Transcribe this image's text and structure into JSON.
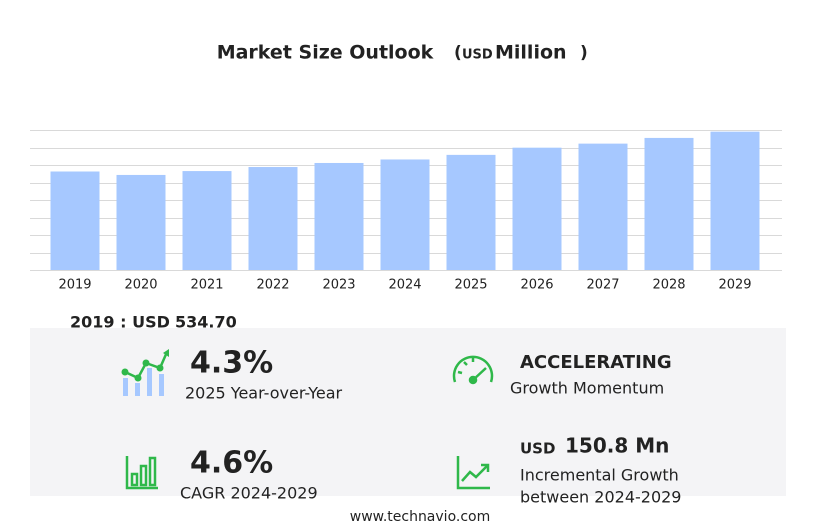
{
  "chart_data": {
    "type": "bar",
    "title": "Market Size Outlook",
    "unit": {
      "open": "(",
      "currency": "USD",
      "scale": "Million",
      "close": ")"
    },
    "categories": [
      "2019",
      "2020",
      "2021",
      "2022",
      "2023",
      "2024",
      "2025",
      "2026",
      "2027",
      "2028",
      "2029"
    ],
    "values": [
      534.7,
      516,
      537,
      559,
      581,
      600,
      625,
      664,
      686,
      717,
      751
    ],
    "color": "#a6c8ff",
    "ylim": [
      0,
      760
    ],
    "yticks": [
      0,
      95,
      190,
      285,
      380,
      475,
      570,
      665,
      760
    ],
    "grid": true
  },
  "base": {
    "label": "2019 : USD",
    "value": "534.70"
  },
  "kpis": [
    {
      "value": "4.3%",
      "caption": "2025 Year-over-Year"
    },
    {
      "value": "ACCELERATING",
      "caption": "Growth Momentum"
    },
    {
      "value": "4.6%",
      "caption": "CAGR 2024-2029"
    },
    {
      "prefix": "USD",
      "value": "150.8 Mn",
      "caption": "Incremental Growth",
      "caption2": "between 2024-2029"
    }
  ],
  "footer": "www.technavio.com"
}
